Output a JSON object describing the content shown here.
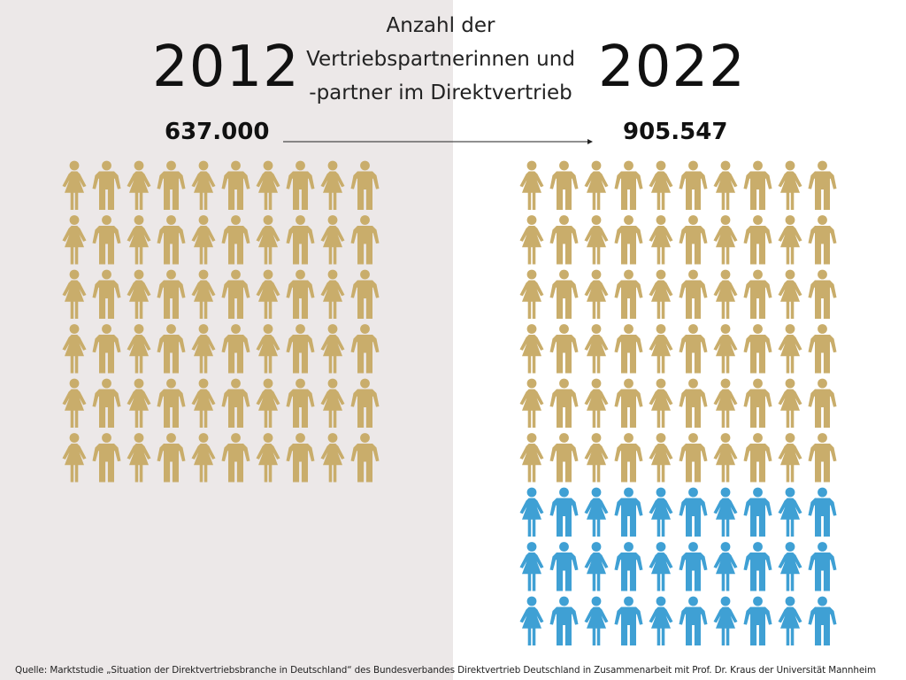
{
  "colors": {
    "background_left": "#ece8e8",
    "background_right": "#ffffff",
    "existing_icons": "#c9ad6b",
    "added_icons": "#3fa0d4"
  },
  "header": {
    "title": "Anzahl der Vertriebspartnerinnen und -partner im Direktvertrieb"
  },
  "chart_data": {
    "type": "pictogram",
    "title": "Anzahl der Vertriebspartnerinnen und -partner im Direktvertrieb",
    "groups": [
      {
        "year": "2012",
        "value_label": "637.000",
        "value": 637000,
        "icon_rows": 6,
        "icons_per_row": 10,
        "rows": [
          {
            "color": "existing_icons",
            "count": 6
          }
        ]
      },
      {
        "year": "2022",
        "value_label": "905.547",
        "value": 905547,
        "icon_rows": 9,
        "icons_per_row": 10,
        "rows": [
          {
            "color": "existing_icons",
            "count": 6
          },
          {
            "color": "added_icons",
            "count": 3
          }
        ]
      }
    ],
    "icon_alternation": [
      "woman-icon",
      "man-icon"
    ],
    "arrow": "right"
  },
  "footer": {
    "source": "Quelle: Marktstudie „Situation der Direktvertriebsbranche in Deutschland“ des Bundesverbandes Direktvertrieb Deutschland in Zusammenarbeit mit Prof. Dr. Kraus der Universität Mannheim"
  }
}
